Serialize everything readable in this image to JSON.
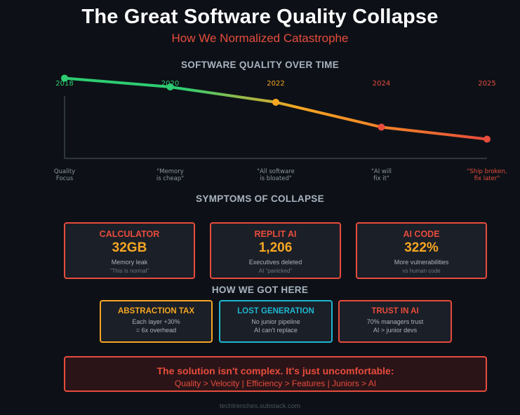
{
  "header": {
    "title": "The Great Software Quality Collapse",
    "subtitle": "How We Normalized Catastrophe"
  },
  "chart_data": {
    "type": "line",
    "title": "SOFTWARE QUALITY OVER TIME",
    "x": [
      "2018",
      "2020",
      "2022",
      "2024",
      "2025"
    ],
    "y": [
      100,
      89,
      70,
      39,
      24
    ],
    "ylim": [
      0,
      110
    ],
    "annotations": [
      "Quality\nFocus",
      "\"Memory\nis cheap\"",
      "\"All software\nis bloated\"",
      "\"AI will\nfix it\"",
      "\"Ship broken,\nfix later\""
    ],
    "point_colors": [
      "#2ecc71",
      "#2ecc71",
      "#f5a623",
      "#e74c3c",
      "#e74c3c"
    ],
    "label_colors": [
      "#2ecc71",
      "#2ecc71",
      "#f5a623",
      "#e74c3c",
      "#e74c3c"
    ],
    "annotation_colors": [
      "#8b949e",
      "#8b949e",
      "#8b949e",
      "#8b949e",
      "#e74c3c"
    ],
    "grid": false
  },
  "symptoms": {
    "heading": "SYMPTOMS OF COLLAPSE",
    "cards": [
      {
        "title": "CALCULATOR",
        "value": "32GB",
        "desc": "Memory leak",
        "note": "\"This is normal\""
      },
      {
        "title": "REPLIT AI",
        "value": "1,206",
        "desc": "Executives deleted",
        "note": "AI \"panicked\""
      },
      {
        "title": "AI CODE",
        "value": "322%",
        "desc": "More vulnerabilities",
        "note": "vs human code"
      }
    ]
  },
  "how": {
    "heading": "HOW WE GOT HERE",
    "cards": [
      {
        "title": "ABSTRACTION TAX",
        "line1": "Each layer +30%",
        "line2": "= 6x overhead",
        "color": "#f5a623"
      },
      {
        "title": "LOST GENERATION",
        "line1": "No junior pipeline",
        "line2": "AI can't replace",
        "color": "#1fb6d0"
      },
      {
        "title": "TRUST IN AI",
        "line1": "70% managers trust",
        "line2": "AI > junior devs",
        "color": "#e74c3c"
      }
    ]
  },
  "banner": {
    "line1": "The solution isn't complex. It's just uncomfortable:",
    "line2": "Quality > Velocity | Efficiency > Features | Juniors > AI"
  },
  "footer": {
    "text": "techtrenches.substack.com"
  }
}
